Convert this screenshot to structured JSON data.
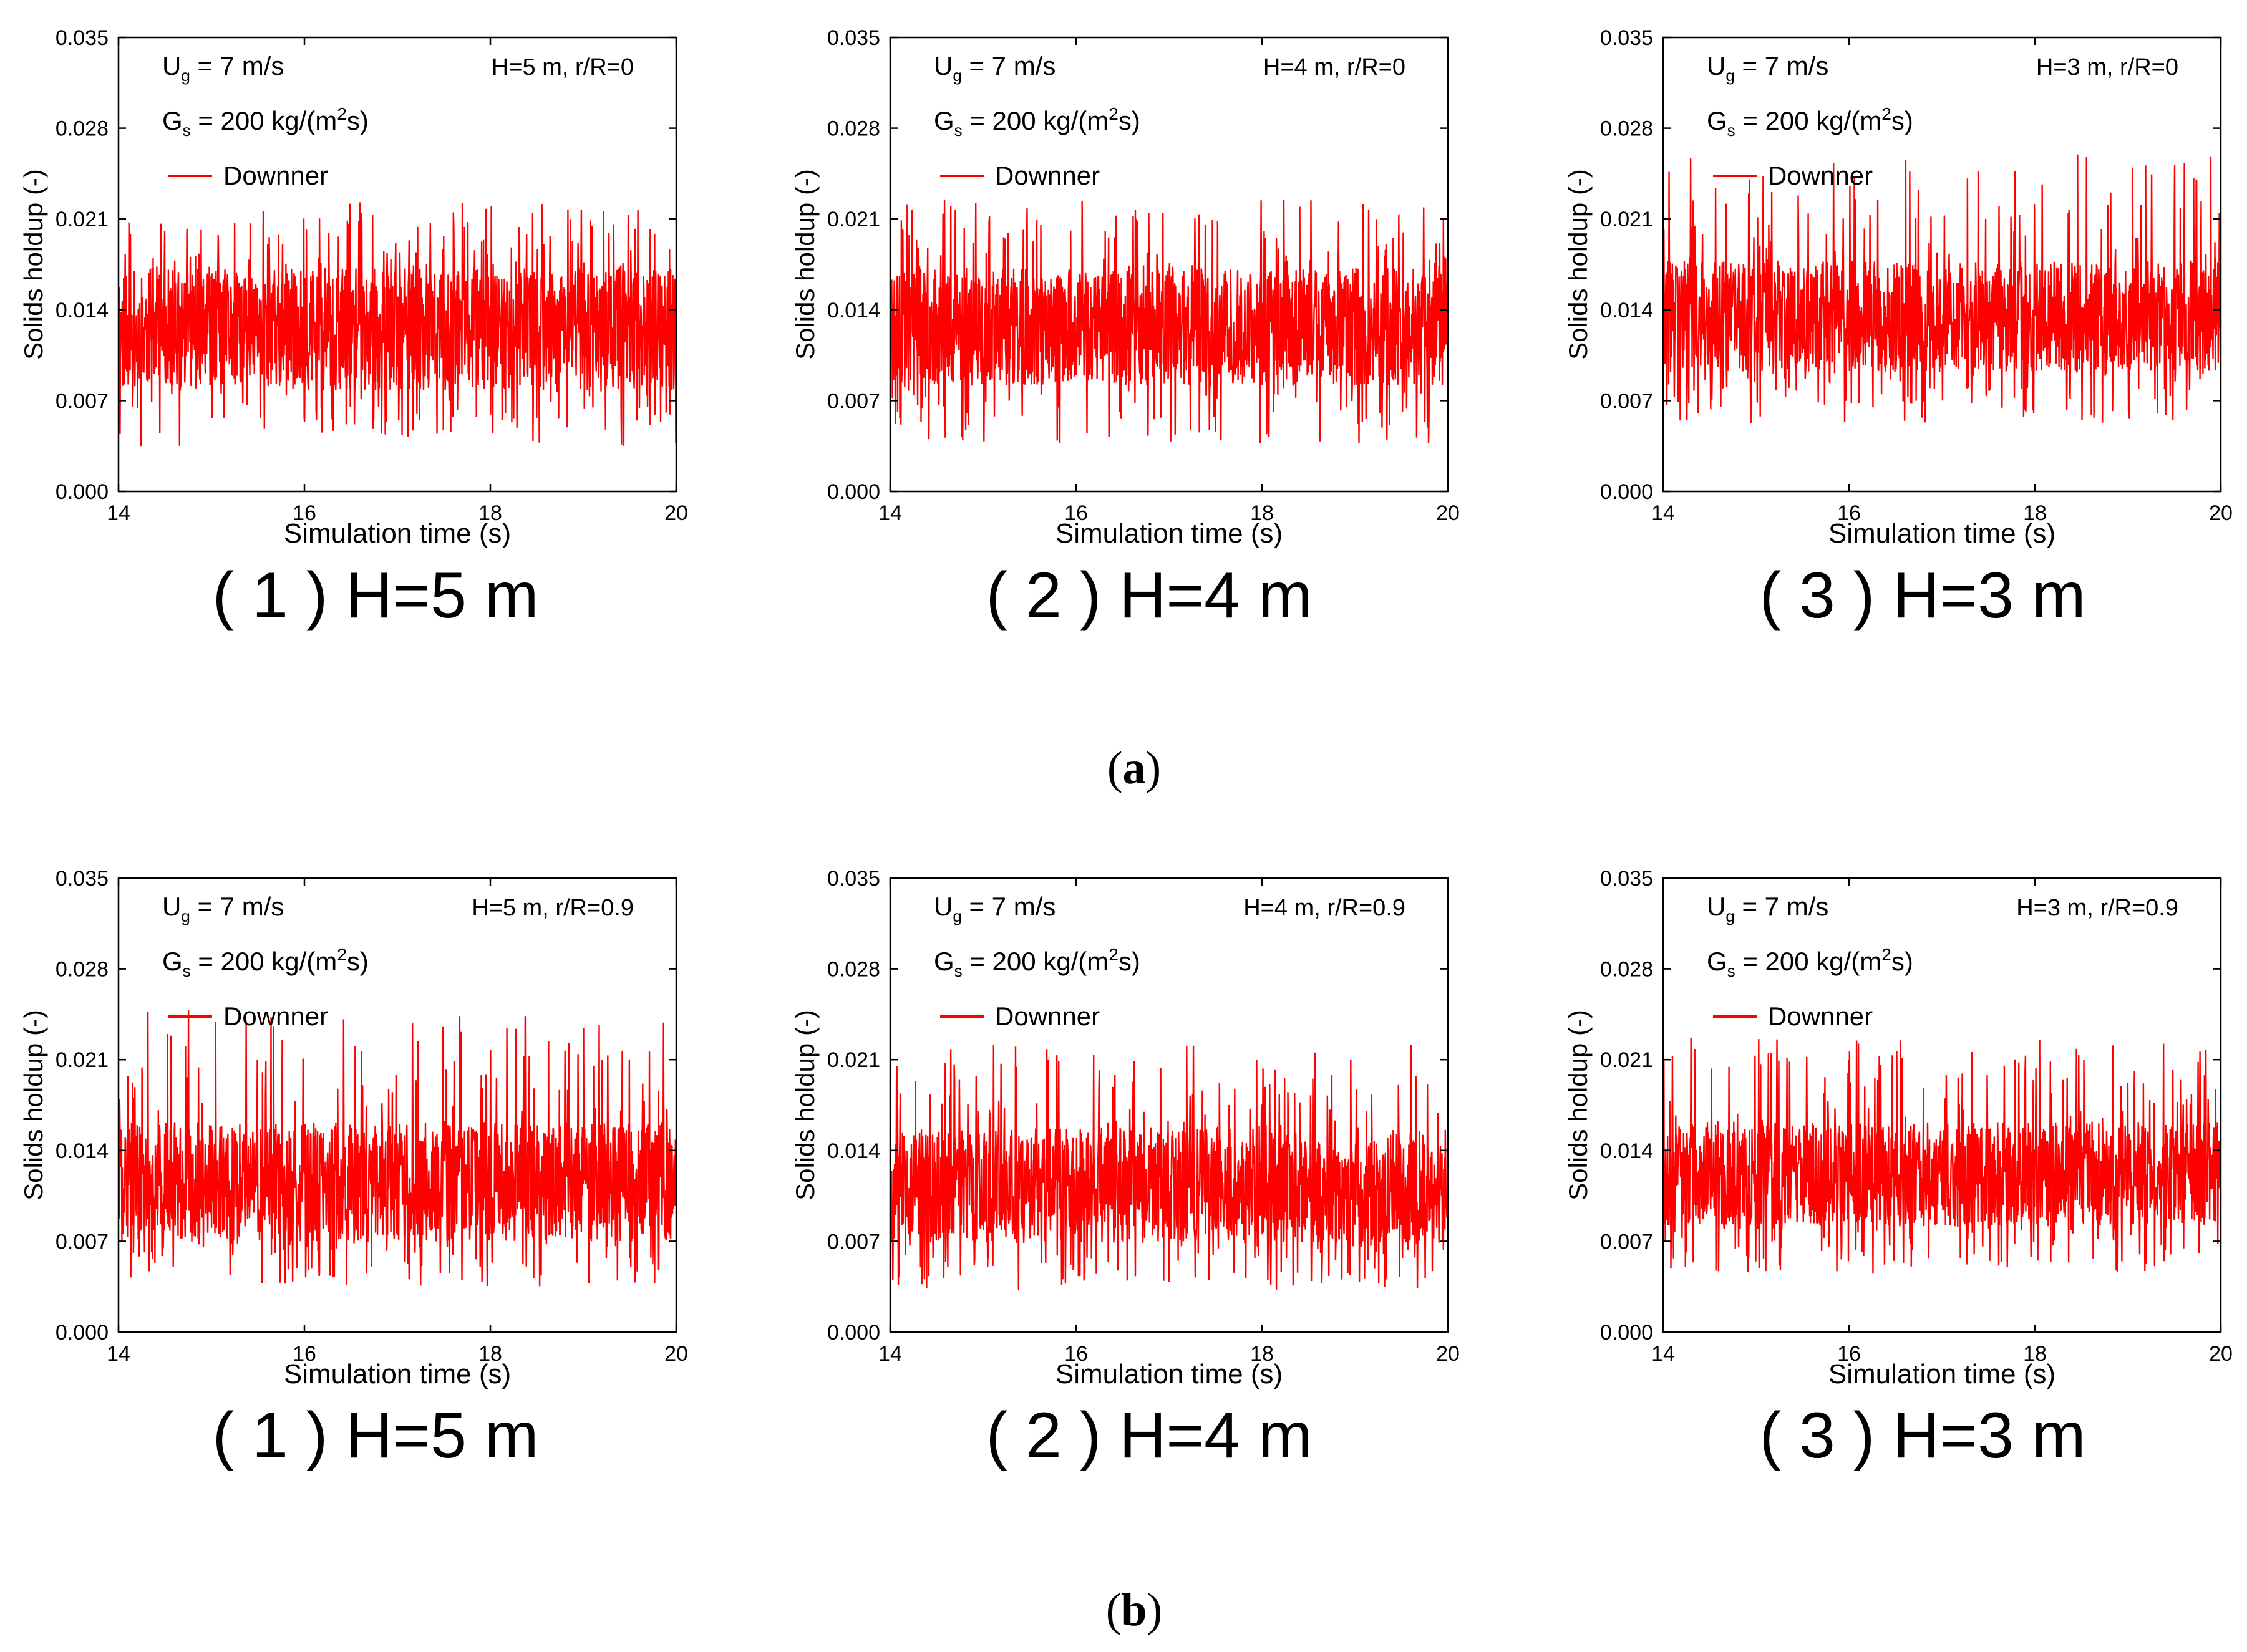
{
  "colors": {
    "series": "#ff0000",
    "axis": "#000000",
    "background": "#ffffff"
  },
  "groups": [
    {
      "id": "a",
      "label": "a"
    },
    {
      "id": "b",
      "label": "b"
    }
  ],
  "chart_data": [
    {
      "type": "line",
      "group": "a",
      "subtitle": "( 1 ) H=5 m",
      "annotations": {
        "ug_main": "U",
        "ug_sub": "g",
        "ug_rest": " = 7 m/s",
        "gs_main": "G",
        "gs_sub": "s",
        "gs_rest_a": " = 200 kg/(m",
        "gs_sup": "2",
        "gs_rest_b": "s)",
        "position": "H=5 m, r/R=0"
      },
      "legend": "Downner",
      "xlabel": "Simulation time (s)",
      "ylabel": "Solids holdup (-)",
      "xlim": [
        14,
        20
      ],
      "ylim": [
        0,
        0.035
      ],
      "xticks": [
        "14",
        "16",
        "18",
        "20"
      ],
      "yticks": [
        "0.000",
        "0.007",
        "0.014",
        "0.021",
        "0.028",
        "0.035"
      ],
      "series": [
        {
          "name": "Downner",
          "mean": 0.0122,
          "band_low": 0.0078,
          "band_high": 0.0172,
          "min": 0.0035,
          "max": 0.0223,
          "seed": 11
        }
      ]
    },
    {
      "type": "line",
      "group": "a",
      "subtitle": "( 2 ) H=4 m",
      "annotations": {
        "ug_main": "U",
        "ug_sub": "g",
        "ug_rest": " = 7 m/s",
        "gs_main": "G",
        "gs_sub": "s",
        "gs_rest_a": " = 200 kg/(m",
        "gs_sup": "2",
        "gs_rest_b": "s)",
        "position": "H=4 m, r/R=0"
      },
      "legend": "Downner",
      "xlabel": "Simulation time (s)",
      "ylabel": "Solids holdup (-)",
      "xlim": [
        14,
        20
      ],
      "ylim": [
        0,
        0.035
      ],
      "xticks": [
        "14",
        "16",
        "18",
        "20"
      ],
      "yticks": [
        "0.000",
        "0.007",
        "0.014",
        "0.021",
        "0.028",
        "0.035"
      ],
      "series": [
        {
          "name": "Downner",
          "mean": 0.0125,
          "band_low": 0.0082,
          "band_high": 0.0172,
          "min": 0.0037,
          "max": 0.0225,
          "seed": 23
        }
      ]
    },
    {
      "type": "line",
      "group": "a",
      "subtitle": "( 3 ) H=3 m",
      "annotations": {
        "ug_main": "U",
        "ug_sub": "g",
        "ug_rest": " = 7 m/s",
        "gs_main": "G",
        "gs_sub": "s",
        "gs_rest_a": " = 200 kg/(m",
        "gs_sup": "2",
        "gs_rest_b": "s)",
        "position": "H=3 m, r/R=0"
      },
      "legend": "Downner",
      "xlabel": "Simulation time (s)",
      "ylabel": "Solids holdup (-)",
      "xlim": [
        14,
        20
      ],
      "ylim": [
        0,
        0.035
      ],
      "xticks": [
        "14",
        "16",
        "18",
        "20"
      ],
      "yticks": [
        "0.000",
        "0.007",
        "0.014",
        "0.021",
        "0.028",
        "0.035"
      ],
      "series": [
        {
          "name": "Downner",
          "mean": 0.0131,
          "band_low": 0.0092,
          "band_high": 0.0178,
          "min": 0.0052,
          "max": 0.0262,
          "seed": 37
        }
      ]
    },
    {
      "type": "line",
      "group": "b",
      "subtitle": "( 1 ) H=5 m",
      "annotations": {
        "ug_main": "U",
        "ug_sub": "g",
        "ug_rest": " = 7 m/s",
        "gs_main": "G",
        "gs_sub": "s",
        "gs_rest_a": " = 200 kg/(m",
        "gs_sup": "2",
        "gs_rest_b": "s)",
        "position": "H=5 m, r/R=0.9"
      },
      "legend": "Downner",
      "xlabel": "Simulation time (s)",
      "ylabel": "Solids holdup (-)",
      "xlim": [
        14,
        20
      ],
      "ylim": [
        0,
        0.035
      ],
      "xticks": [
        "14",
        "16",
        "18",
        "20"
      ],
      "yticks": [
        "0.000",
        "0.007",
        "0.014",
        "0.021",
        "0.028",
        "0.035"
      ],
      "series": [
        {
          "name": "Downner",
          "mean": 0.0112,
          "band_low": 0.007,
          "band_high": 0.0162,
          "min": 0.0035,
          "max": 0.0248,
          "seed": 41
        }
      ]
    },
    {
      "type": "line",
      "group": "b",
      "subtitle": "( 2 ) H=4 m",
      "annotations": {
        "ug_main": "U",
        "ug_sub": "g",
        "ug_rest": " = 7 m/s",
        "gs_main": "G",
        "gs_sub": "s",
        "gs_rest_a": " = 200 kg/(m",
        "gs_sup": "2",
        "gs_rest_b": "s)",
        "position": "H=4 m, r/R=0.9"
      },
      "legend": "Downner",
      "xlabel": "Simulation time (s)",
      "ylabel": "Solids holdup (-)",
      "xlim": [
        14,
        20
      ],
      "ylim": [
        0,
        0.035
      ],
      "xticks": [
        "14",
        "16",
        "18",
        "20"
      ],
      "yticks": [
        "0.000",
        "0.007",
        "0.014",
        "0.021",
        "0.028",
        "0.035"
      ],
      "series": [
        {
          "name": "Downner",
          "mean": 0.011,
          "band_low": 0.0068,
          "band_high": 0.0158,
          "min": 0.0032,
          "max": 0.0222,
          "seed": 53
        }
      ]
    },
    {
      "type": "line",
      "group": "b",
      "subtitle": "( 3 ) H=3 m",
      "annotations": {
        "ug_main": "U",
        "ug_sub": "g",
        "ug_rest": " = 7 m/s",
        "gs_main": "G",
        "gs_sub": "s",
        "gs_rest_a": " = 200 kg/(m",
        "gs_sup": "2",
        "gs_rest_b": "s)",
        "position": "H=3 m, r/R=0.9"
      },
      "legend": "Downner",
      "xlabel": "Simulation time (s)",
      "ylabel": "Solids holdup (-)",
      "xlim": [
        14,
        20
      ],
      "ylim": [
        0,
        0.035
      ],
      "xticks": [
        "14",
        "16",
        "18",
        "20"
      ],
      "yticks": [
        "0.000",
        "0.007",
        "0.014",
        "0.021",
        "0.028",
        "0.035"
      ],
      "series": [
        {
          "name": "Downner",
          "mean": 0.0118,
          "band_low": 0.0082,
          "band_high": 0.0162,
          "min": 0.0045,
          "max": 0.0228,
          "seed": 67
        }
      ]
    }
  ]
}
